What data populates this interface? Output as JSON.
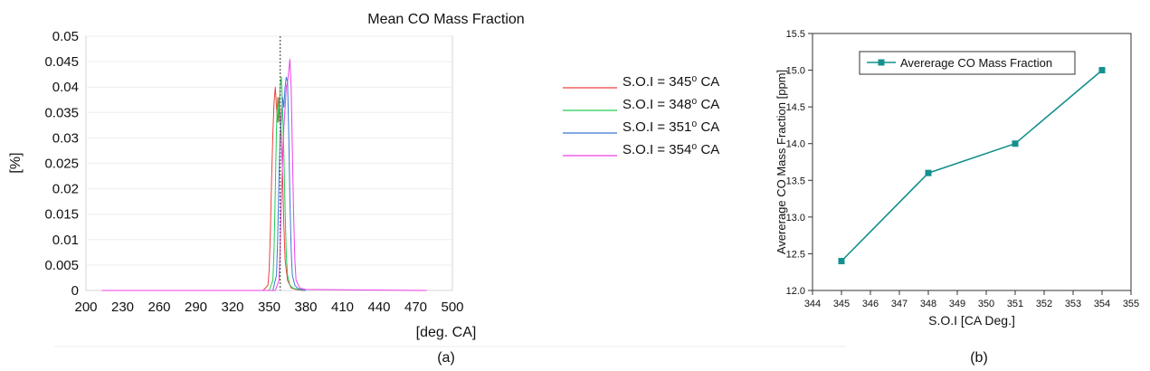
{
  "chart_data": [
    {
      "panel": "(a)",
      "type": "line",
      "title": "Mean CO Mass Fraction",
      "xlabel": "[deg. CA]",
      "ylabel": "[%]",
      "xlim": [
        200,
        500
      ],
      "ylim": [
        0,
        0.05
      ],
      "xticks": [
        200,
        230,
        260,
        290,
        320,
        350,
        380,
        410,
        440,
        470,
        500
      ],
      "yticks": [
        0,
        0.005,
        0.01,
        0.015,
        0.02,
        0.025,
        0.03,
        0.035,
        0.04,
        0.045,
        0.05
      ],
      "reference_line_x": 359,
      "legend": "top-right",
      "series": [
        {
          "name": "S.O.I = 345⁰ CA",
          "color": "#f04040",
          "x": [
            213,
            345,
            349,
            350,
            351,
            352,
            353,
            354,
            355,
            356,
            357,
            358,
            359,
            360,
            361,
            362,
            363,
            365,
            368,
            372,
            378
          ],
          "y": [
            0,
            0,
            0.001,
            0.004,
            0.012,
            0.022,
            0.031,
            0.037,
            0.04,
            0.036,
            0.033,
            0.038,
            0.035,
            0.03,
            0.022,
            0.013,
            0.006,
            0.002,
            0.0005,
            0.0002,
            0
          ]
        },
        {
          "name": "S.O.I = 348⁰ CA",
          "color": "#22cc55",
          "x": [
            213,
            350,
            353,
            354,
            355,
            356,
            357,
            358,
            359,
            360,
            361,
            362,
            363,
            364,
            365,
            367,
            370,
            374,
            380
          ],
          "y": [
            0,
            0,
            0.002,
            0.008,
            0.02,
            0.032,
            0.038,
            0.033,
            0.04,
            0.042,
            0.035,
            0.027,
            0.016,
            0.007,
            0.003,
            0.001,
            0.0004,
            0.0002,
            0
          ]
        },
        {
          "name": "S.O.I = 351⁰ CA",
          "color": "#3a78d0",
          "x": [
            213,
            353,
            356,
            357,
            358,
            359,
            360,
            361,
            362,
            363,
            364,
            365,
            366,
            367,
            368,
            369,
            371,
            374,
            380
          ],
          "y": [
            0,
            0,
            0.003,
            0.01,
            0.022,
            0.03,
            0.034,
            0.038,
            0.036,
            0.04,
            0.042,
            0.041,
            0.031,
            0.018,
            0.008,
            0.003,
            0.001,
            0.0003,
            0
          ]
        },
        {
          "name": "S.O.I = 354⁰ CA",
          "color": "#f040e8",
          "x": [
            213,
            355,
            358,
            359,
            360,
            361,
            362,
            363,
            364,
            365,
            366,
            367,
            368,
            369,
            370,
            371,
            372,
            375,
            380,
            479
          ],
          "y": [
            0,
            0,
            0.002,
            0.008,
            0.018,
            0.026,
            0.032,
            0.036,
            0.04,
            0.041,
            0.043,
            0.0455,
            0.04,
            0.028,
            0.015,
            0.006,
            0.002,
            0.0005,
            0.0002,
            0
          ]
        }
      ]
    },
    {
      "panel": "(b)",
      "type": "line",
      "title": "",
      "xlabel": "S.O.I [CA Deg.]",
      "ylabel": "Avererage CO Mass Fraction [ppm]",
      "xlim": [
        344,
        355
      ],
      "ylim": [
        12.0,
        15.5
      ],
      "xticks": [
        344,
        345,
        346,
        347,
        348,
        349,
        350,
        351,
        352,
        353,
        354,
        355
      ],
      "yticks": [
        "12.0",
        "12.5",
        "13.0",
        "13.5",
        "14.0",
        "14.5",
        "15.0",
        "15.5"
      ],
      "legend": "top-left",
      "series": [
        {
          "name": "Avererage CO Mass Fraction",
          "color": "#14908e",
          "x": [
            345,
            348,
            351,
            354
          ],
          "y": [
            12.4,
            13.6,
            14.0,
            15.0
          ]
        }
      ]
    }
  ]
}
